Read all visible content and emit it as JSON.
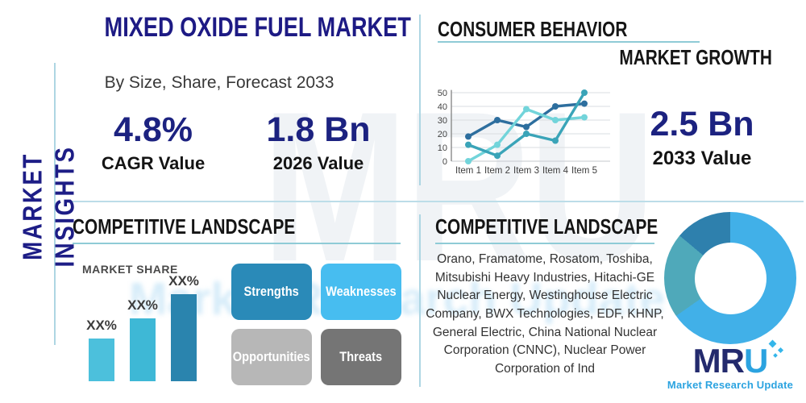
{
  "sidebar": {
    "vertical_label": "MARKET INSIGHTS"
  },
  "titles": {
    "main": "MIXED OXIDE FUEL MARKET",
    "subtitle": "By Size, Share, Forecast 2033",
    "consumer_behavior": "CONSUMER BEHAVIOR",
    "market_growth": "MARKET GROWTH",
    "competitive_landscape_left": "COMPETITIVE LANDSCAPE",
    "competitive_landscape_right": "COMPETITIVE LANDSCAPE",
    "market_share": "MARKET SHARE"
  },
  "stats": {
    "cagr": {
      "value": "4.8%",
      "label": "CAGR Value"
    },
    "base_year": {
      "value": "1.8 Bn",
      "label": "2026 Value"
    },
    "forecast_year": {
      "value": "2.5 Bn",
      "label": "2033 Value"
    }
  },
  "swot": {
    "items": [
      {
        "label": "Strengths",
        "color": "#2a8ab8"
      },
      {
        "label": "Weaknesses",
        "color": "#47bdf0"
      },
      {
        "label": "Opportunities",
        "color": "#b7b7b7"
      },
      {
        "label": "Threats",
        "color": "#757575"
      }
    ]
  },
  "companies": {
    "text": "Orano, Framatome, Rosatom, Toshiba, Mitsubishi Heavy Industries, Hitachi-GE Nuclear Energy, Westinghouse Electric Company, BWX Technologies, EDF, KHNP, General Electric, China National Nuclear Corporation (CNNC), Nuclear Power Corporation of Ind"
  },
  "logo": {
    "text_dark": "MR",
    "text_blue": "U",
    "tagline": "Market Research Update",
    "navy": "#232a6d",
    "blue": "#2ba3e0"
  },
  "watermark": {
    "big": "MRU",
    "blur_text": "Market Research Update"
  },
  "colors": {
    "navy_title": "#1d1a84",
    "stat_navy": "#1c2280",
    "heading": "#151515",
    "underline": "#8fcbd6",
    "divider": "#aed6e3"
  },
  "chart_data": [
    {
      "id": "consumer-line",
      "type": "line",
      "title": "",
      "x": [
        "Item 1",
        "Item 2",
        "Item 3",
        "Item 4",
        "Item 5"
      ],
      "ylim": [
        0,
        50
      ],
      "yticks": [
        0,
        10,
        20,
        30,
        40,
        50
      ],
      "grid": true,
      "legend": "none",
      "series": [
        {
          "name": "series-dark-blue",
          "color": "#2d6e9e",
          "values": [
            18,
            30,
            25,
            40,
            42
          ]
        },
        {
          "name": "series-light-cyan",
          "color": "#72d4da",
          "values": [
            0,
            12,
            38,
            30,
            32
          ]
        },
        {
          "name": "series-teal",
          "color": "#3aa4b8",
          "values": [
            12,
            4,
            20,
            15,
            50
          ]
        }
      ]
    },
    {
      "id": "market-share-bar",
      "type": "bar",
      "title": "MARKET SHARE",
      "categories": [
        "XX%",
        "XX%",
        "XX%"
      ],
      "values": [
        53,
        78,
        108
      ],
      "value_unit": "relative-height-px",
      "colors": [
        "#4cc0dc",
        "#3eb8d6",
        "#2a84ae"
      ]
    },
    {
      "id": "company-share-donut",
      "type": "pie",
      "slices": [
        {
          "value": 65.3,
          "color": "#41b0e8"
        },
        {
          "value": 20.8,
          "color": "#4fa9ba"
        },
        {
          "value": 13.9,
          "color": "#2e80ad"
        }
      ]
    }
  ]
}
